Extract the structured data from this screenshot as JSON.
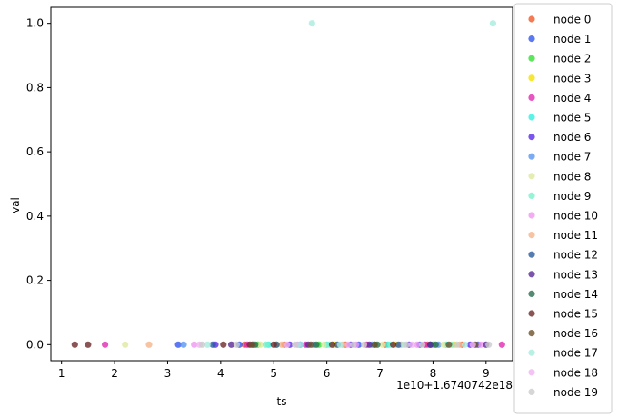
{
  "chart_data": {
    "type": "scatter",
    "xlabel": "ts",
    "ylabel": "val",
    "x_offset_label": "1e10+1.6740742e18",
    "x_unit_note": "x values in units of 1e10 added to 1.6740742e18",
    "xlim": [
      0.8,
      9.5
    ],
    "ylim": [
      -0.05,
      1.05
    ],
    "xticks": [
      1,
      2,
      3,
      4,
      5,
      6,
      7,
      8,
      9
    ],
    "yticks": [
      0.0,
      0.2,
      0.4,
      0.6,
      0.8,
      1.0
    ],
    "ytick_labels": [
      "0.0",
      "0.2",
      "0.4",
      "0.6",
      "0.8",
      "1.0"
    ],
    "grid": false,
    "legend_placement": "outside-right",
    "series": [
      {
        "name": "node 0",
        "color": "#f05a28",
        "x": [
          4.45,
          5.2,
          6.35,
          7.1,
          7.9,
          8.55
        ],
        "y": [
          0,
          0,
          0,
          0,
          0,
          0
        ]
      },
      {
        "name": "node 1",
        "color": "#3358f0",
        "x": [
          3.2,
          4.35,
          5.5,
          6.6,
          7.75,
          8.85
        ],
        "y": [
          0,
          0,
          0,
          0,
          0,
          0
        ]
      },
      {
        "name": "node 2",
        "color": "#33e033",
        "x": [
          4.7,
          5.85,
          6.9,
          8.0
        ],
        "y": [
          0,
          0,
          0,
          0
        ]
      },
      {
        "name": "node 3",
        "color": "#f5e000",
        "x": [
          5.05,
          6.15,
          7.3,
          8.4
        ],
        "y": [
          0,
          0,
          0,
          0
        ]
      },
      {
        "name": "node 4",
        "color": "#e02ab0",
        "x": [
          1.82,
          4.5,
          5.6,
          6.75,
          7.85,
          9.3
        ],
        "y": [
          0,
          0,
          0,
          0,
          0,
          0
        ]
      },
      {
        "name": "node 5",
        "color": "#33f0e0",
        "x": [
          4.9,
          6.0,
          7.15,
          8.25
        ],
        "y": [
          0,
          0,
          0,
          0
        ]
      },
      {
        "name": "node 6",
        "color": "#5a2ae8",
        "x": [
          3.9,
          5.3,
          6.45,
          7.55,
          8.7
        ],
        "y": [
          0,
          0,
          0,
          0,
          0
        ]
      },
      {
        "name": "node 7",
        "color": "#5a96f0",
        "x": [
          3.3,
          4.6,
          5.75,
          6.85,
          8.1
        ],
        "y": [
          0,
          0,
          0,
          0,
          0
        ]
      },
      {
        "name": "node 8",
        "color": "#e0e8a0",
        "x": [
          2.2,
          4.75,
          5.95,
          7.05,
          8.2
        ],
        "y": [
          0,
          0,
          0,
          0,
          0
        ]
      },
      {
        "name": "node 9",
        "color": "#7af0cc",
        "x": [
          4.85,
          6.05,
          7.2,
          8.35
        ],
        "y": [
          0,
          0,
          0,
          0
        ]
      },
      {
        "name": "node 10",
        "color": "#f096f0",
        "x": [
          3.5,
          5.45,
          6.55,
          7.7,
          8.9
        ],
        "y": [
          0,
          0,
          0,
          0,
          0
        ]
      },
      {
        "name": "node 11",
        "color": "#f5b48c",
        "x": [
          2.65,
          5.15,
          6.3,
          7.4,
          8.5
        ],
        "y": [
          0,
          0,
          0,
          0,
          0
        ]
      },
      {
        "name": "node 12",
        "color": "#2a5aa0",
        "x": [
          3.85,
          5.05,
          6.2,
          7.35,
          7.95
        ],
        "y": [
          0,
          0,
          0,
          0,
          0
        ]
      },
      {
        "name": "node 13",
        "color": "#5a2a96",
        "x": [
          4.2,
          5.65,
          6.8,
          7.95,
          9.0
        ],
        "y": [
          0,
          0,
          0,
          0,
          0
        ]
      },
      {
        "name": "node 14",
        "color": "#2a6e50",
        "x": [
          4.65,
          5.8,
          6.95,
          8.05
        ],
        "y": [
          0,
          0,
          0,
          0
        ]
      },
      {
        "name": "node 15",
        "color": "#6e2a2a",
        "x": [
          1.25,
          1.5,
          4.05,
          4.55,
          5.0,
          6.1,
          7.25
        ],
        "y": [
          0,
          0,
          0,
          0,
          0,
          0,
          0
        ]
      },
      {
        "name": "node 16",
        "color": "#6e502a",
        "x": [
          4.6,
          5.7,
          6.9,
          8.3,
          8.8
        ],
        "y": [
          0,
          0,
          0,
          0,
          0
        ]
      },
      {
        "name": "node 17",
        "color": "#a8ece0",
        "x": [
          5.72,
          9.13,
          3.75,
          5.5,
          6.25,
          7.45,
          8.6
        ],
        "y": [
          1,
          1,
          0,
          0,
          0,
          0,
          0
        ]
      },
      {
        "name": "node 18",
        "color": "#f0b4f0",
        "x": [
          3.6,
          5.25,
          6.4,
          7.6,
          8.75
        ],
        "y": [
          0,
          0,
          0,
          0,
          0
        ]
      },
      {
        "name": "node 19",
        "color": "#cccccc",
        "x": [
          3.65,
          4.3,
          5.4,
          6.5,
          6.7,
          7.5,
          7.8,
          8.45,
          9.05
        ],
        "y": [
          0,
          0,
          0,
          0,
          0,
          0,
          0,
          0,
          0
        ]
      }
    ]
  }
}
